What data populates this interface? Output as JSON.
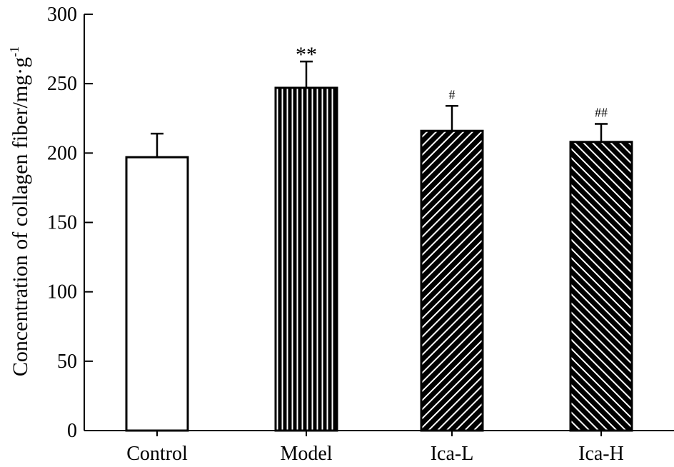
{
  "chart_data": {
    "type": "bar",
    "title": "",
    "xlabel": "",
    "ylabel": "Concentration of collagen fiber/mg·g",
    "ylabel_superscript": "-1",
    "ylim": [
      0,
      300
    ],
    "yticks": [
      0,
      50,
      100,
      150,
      200,
      250,
      300
    ],
    "yticklabels": [
      "0",
      "50",
      "100",
      "150",
      "200",
      "250",
      "300"
    ],
    "categories": [
      "Control",
      "Model",
      "Ica-L",
      "Ica-H"
    ],
    "values": [
      197,
      247,
      216,
      208
    ],
    "errors": [
      17,
      19,
      18,
      13
    ],
    "annotations": [
      "",
      "**",
      "#",
      "##"
    ],
    "patterns": [
      "none",
      "vertical-lines",
      "diagonal-lines",
      "back-diagonal-lines"
    ],
    "colors": {
      "axis": "#000000",
      "bar_fill": "#ffffff",
      "pattern": "#000000"
    }
  }
}
